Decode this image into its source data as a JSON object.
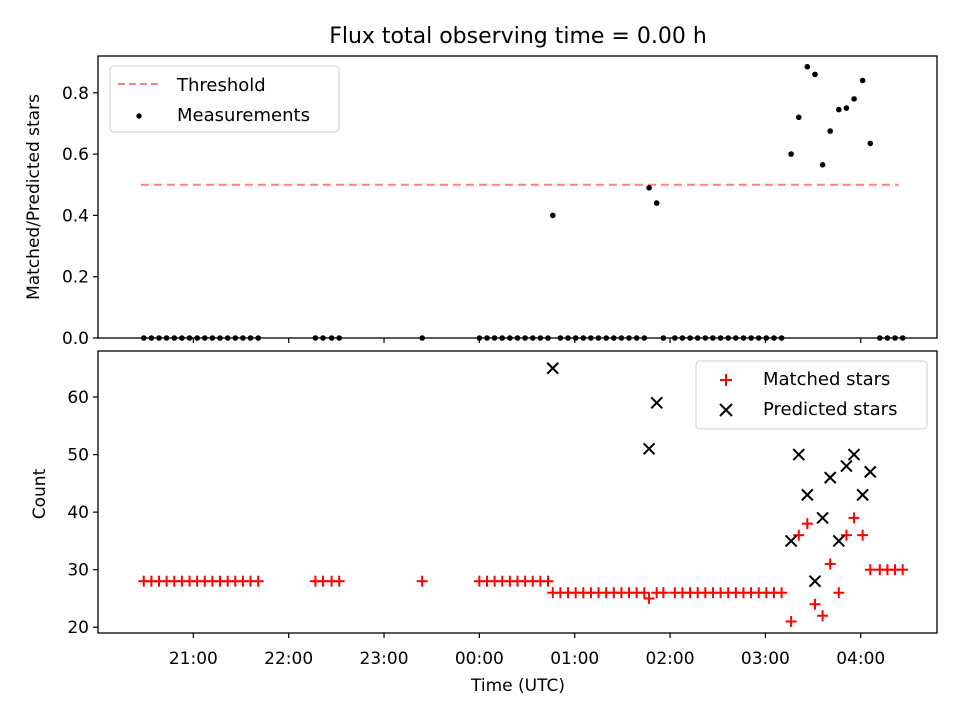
{
  "chart_data": [
    {
      "type": "scatter",
      "title": "Flux total observing time = 0.00 h",
      "xlabel": "",
      "ylabel": "Matched/Predicted stars",
      "ylim": [
        0,
        0.92
      ],
      "yticks": [
        0.0,
        0.2,
        0.4,
        0.6,
        0.8
      ],
      "yticklabels": [
        "0.0",
        "0.2",
        "0.4",
        "0.6",
        "0.8"
      ],
      "legend_position": "upper-left",
      "series": [
        {
          "name": "Threshold",
          "kind": "dashed-line",
          "color": "#ff7f7f",
          "points": [
            [
              20.45,
              0.5
            ],
            [
              28.4,
              0.5
            ]
          ]
        },
        {
          "name": "Measurements",
          "kind": "dot",
          "color": "#000000",
          "points": [
            [
              20.48,
              0
            ],
            [
              20.56,
              0
            ],
            [
              20.64,
              0
            ],
            [
              20.72,
              0
            ],
            [
              20.8,
              0
            ],
            [
              20.88,
              0
            ],
            [
              20.96,
              0
            ],
            [
              21.04,
              0
            ],
            [
              21.12,
              0
            ],
            [
              21.2,
              0
            ],
            [
              21.28,
              0
            ],
            [
              21.36,
              0
            ],
            [
              21.44,
              0
            ],
            [
              21.52,
              0
            ],
            [
              21.6,
              0
            ],
            [
              21.68,
              0
            ],
            [
              22.28,
              0
            ],
            [
              22.36,
              0
            ],
            [
              22.45,
              0
            ],
            [
              22.53,
              0
            ],
            [
              23.4,
              0
            ],
            [
              24.0,
              0
            ],
            [
              24.08,
              0
            ],
            [
              24.16,
              0
            ],
            [
              24.24,
              0
            ],
            [
              24.32,
              0
            ],
            [
              24.4,
              0
            ],
            [
              24.48,
              0
            ],
            [
              24.56,
              0
            ],
            [
              24.64,
              0
            ],
            [
              24.72,
              0
            ],
            [
              24.77,
              0.4
            ],
            [
              24.85,
              0
            ],
            [
              24.93,
              0
            ],
            [
              25.01,
              0
            ],
            [
              25.09,
              0
            ],
            [
              25.17,
              0
            ],
            [
              25.25,
              0
            ],
            [
              25.33,
              0
            ],
            [
              25.41,
              0
            ],
            [
              25.49,
              0
            ],
            [
              25.57,
              0
            ],
            [
              25.65,
              0
            ],
            [
              25.73,
              0
            ],
            [
              25.78,
              0.49
            ],
            [
              25.86,
              0.44
            ],
            [
              25.93,
              0
            ],
            [
              26.05,
              0
            ],
            [
              26.13,
              0
            ],
            [
              26.21,
              0
            ],
            [
              26.29,
              0
            ],
            [
              26.37,
              0
            ],
            [
              26.45,
              0
            ],
            [
              26.53,
              0
            ],
            [
              26.61,
              0
            ],
            [
              26.69,
              0
            ],
            [
              26.77,
              0
            ],
            [
              26.85,
              0
            ],
            [
              26.93,
              0
            ],
            [
              27.01,
              0
            ],
            [
              27.09,
              0
            ],
            [
              27.17,
              0
            ],
            [
              27.27,
              0.6
            ],
            [
              27.35,
              0.72
            ],
            [
              27.44,
              0.885
            ],
            [
              27.52,
              0.86
            ],
            [
              27.6,
              0.565
            ],
            [
              27.68,
              0.675
            ],
            [
              27.77,
              0.745
            ],
            [
              27.85,
              0.75
            ],
            [
              27.93,
              0.78
            ],
            [
              28.02,
              0.84
            ],
            [
              28.1,
              0.635
            ],
            [
              28.2,
              0
            ],
            [
              28.28,
              0
            ],
            [
              28.36,
              0
            ],
            [
              28.44,
              0
            ]
          ]
        }
      ]
    },
    {
      "type": "scatter",
      "title": "",
      "xlabel": "Time (UTC)",
      "ylabel": "Count",
      "ylim": [
        19,
        68
      ],
      "yticks": [
        20,
        30,
        40,
        50,
        60
      ],
      "yticklabels": [
        "20",
        "30",
        "40",
        "50",
        "60"
      ],
      "xlim": [
        20.0,
        28.8
      ],
      "xticks": [
        21,
        22,
        23,
        24,
        25,
        26,
        27,
        28
      ],
      "xticklabels": [
        "21:00",
        "22:00",
        "23:00",
        "00:00",
        "01:00",
        "02:00",
        "03:00",
        "04:00"
      ],
      "legend_position": "upper-right",
      "series": [
        {
          "name": "Matched stars",
          "kind": "plus",
          "color": "#ff0000",
          "points": [
            [
              20.48,
              28
            ],
            [
              20.56,
              28
            ],
            [
              20.64,
              28
            ],
            [
              20.72,
              28
            ],
            [
              20.8,
              28
            ],
            [
              20.88,
              28
            ],
            [
              20.96,
              28
            ],
            [
              21.04,
              28
            ],
            [
              21.12,
              28
            ],
            [
              21.2,
              28
            ],
            [
              21.28,
              28
            ],
            [
              21.36,
              28
            ],
            [
              21.44,
              28
            ],
            [
              21.52,
              28
            ],
            [
              21.6,
              28
            ],
            [
              21.68,
              28
            ],
            [
              22.28,
              28
            ],
            [
              22.36,
              28
            ],
            [
              22.45,
              28
            ],
            [
              22.53,
              28
            ],
            [
              23.4,
              28
            ],
            [
              24.0,
              28
            ],
            [
              24.08,
              28
            ],
            [
              24.16,
              28
            ],
            [
              24.24,
              28
            ],
            [
              24.32,
              28
            ],
            [
              24.4,
              28
            ],
            [
              24.48,
              28
            ],
            [
              24.56,
              28
            ],
            [
              24.64,
              28
            ],
            [
              24.72,
              28
            ],
            [
              24.77,
              26
            ],
            [
              24.85,
              26
            ],
            [
              24.93,
              26
            ],
            [
              25.01,
              26
            ],
            [
              25.09,
              26
            ],
            [
              25.17,
              26
            ],
            [
              25.25,
              26
            ],
            [
              25.33,
              26
            ],
            [
              25.41,
              26
            ],
            [
              25.49,
              26
            ],
            [
              25.57,
              26
            ],
            [
              25.65,
              26
            ],
            [
              25.73,
              26
            ],
            [
              25.78,
              25
            ],
            [
              25.86,
              26
            ],
            [
              25.93,
              26
            ],
            [
              26.05,
              26
            ],
            [
              26.13,
              26
            ],
            [
              26.21,
              26
            ],
            [
              26.29,
              26
            ],
            [
              26.37,
              26
            ],
            [
              26.45,
              26
            ],
            [
              26.53,
              26
            ],
            [
              26.61,
              26
            ],
            [
              26.69,
              26
            ],
            [
              26.77,
              26
            ],
            [
              26.85,
              26
            ],
            [
              26.93,
              26
            ],
            [
              27.01,
              26
            ],
            [
              27.09,
              26
            ],
            [
              27.17,
              26
            ],
            [
              27.27,
              21
            ],
            [
              27.35,
              36
            ],
            [
              27.44,
              38
            ],
            [
              27.52,
              24
            ],
            [
              27.6,
              22
            ],
            [
              27.68,
              31
            ],
            [
              27.77,
              26
            ],
            [
              27.85,
              36
            ],
            [
              27.93,
              39
            ],
            [
              28.02,
              36
            ],
            [
              28.1,
              30
            ],
            [
              28.2,
              30
            ],
            [
              28.28,
              30
            ],
            [
              28.36,
              30
            ],
            [
              28.44,
              30
            ]
          ]
        },
        {
          "name": "Predicted stars",
          "kind": "x",
          "color": "#000000",
          "points": [
            [
              24.77,
              65
            ],
            [
              25.78,
              51
            ],
            [
              25.86,
              59
            ],
            [
              27.27,
              35
            ],
            [
              27.35,
              50
            ],
            [
              27.44,
              43
            ],
            [
              27.52,
              28
            ],
            [
              27.6,
              39
            ],
            [
              27.68,
              46
            ],
            [
              27.77,
              35
            ],
            [
              27.85,
              48
            ],
            [
              27.93,
              50
            ],
            [
              28.02,
              43
            ],
            [
              28.1,
              47
            ]
          ]
        }
      ]
    }
  ]
}
